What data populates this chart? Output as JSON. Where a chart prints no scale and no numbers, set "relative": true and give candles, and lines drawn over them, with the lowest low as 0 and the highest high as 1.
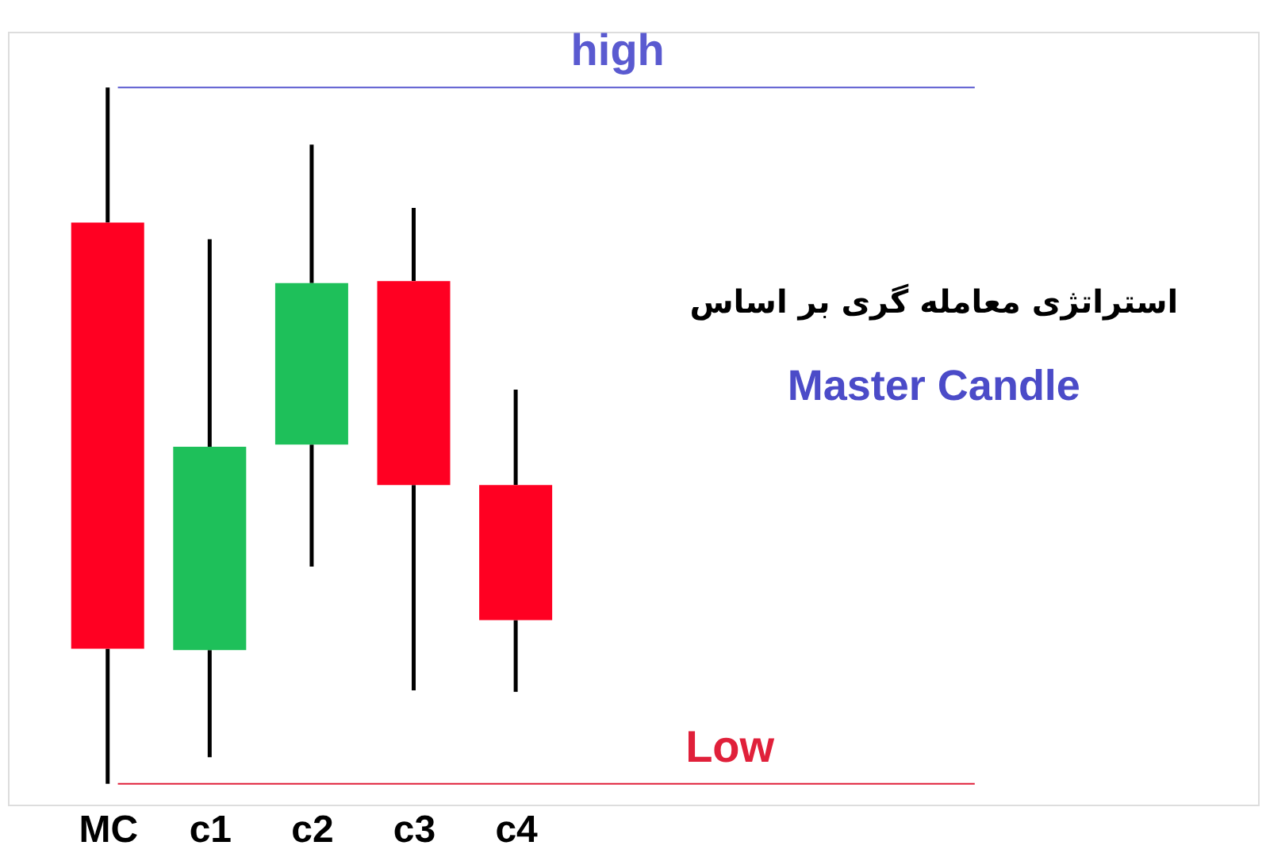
{
  "chart_data": {
    "type": "candlestick",
    "relative": true,
    "categories": [
      "MC",
      "c1",
      "c2",
      "c3",
      "c4"
    ],
    "ohlc": [
      [
        0.806,
        1.0,
        0.0,
        0.194
      ],
      [
        0.192,
        0.782,
        0.038,
        0.484
      ],
      [
        0.487,
        0.918,
        0.312,
        0.719
      ],
      [
        0.722,
        0.827,
        0.134,
        0.429
      ],
      [
        0.429,
        0.566,
        0.132,
        0.235
      ]
    ],
    "colors": [
      "#ff0022",
      "#1ec05a",
      "#1ec05a",
      "#ff0022",
      "#ff0022"
    ],
    "ref_lines": [
      {
        "axis": "y",
        "value": 1.0,
        "label": "high",
        "color": "#5a5ad0"
      },
      {
        "axis": "y",
        "value": 0.0,
        "label": "Low",
        "color": "#e0203a"
      }
    ],
    "annotations": [
      "استراتژی معامله گری بر اساس",
      "Master Candle"
    ],
    "tick_labels": "x"
  }
}
